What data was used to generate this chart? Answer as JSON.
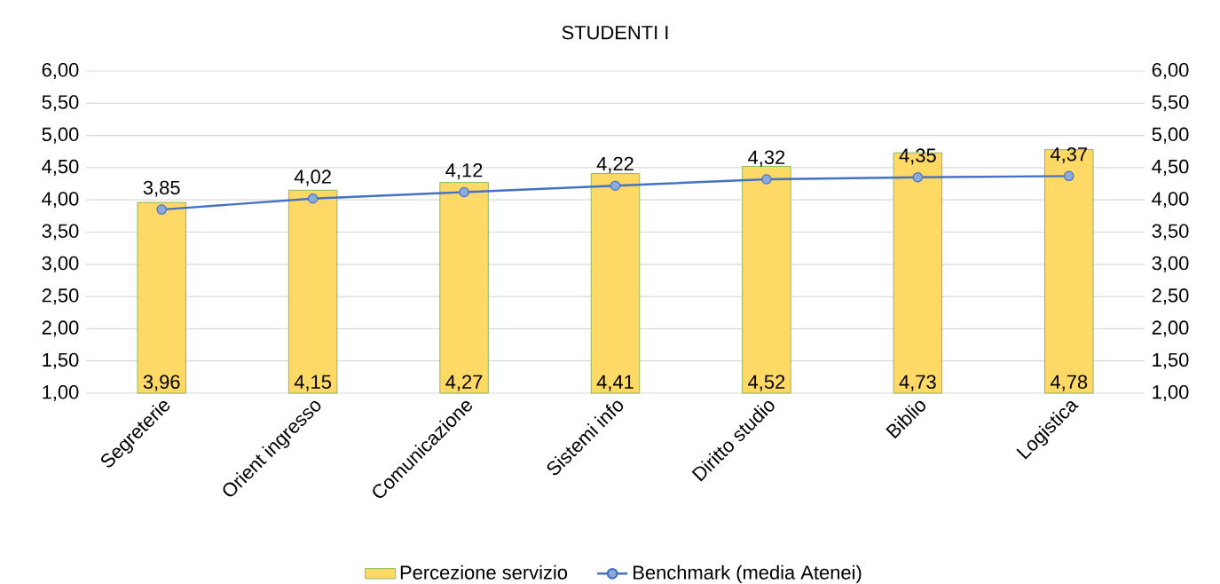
{
  "chart_data": {
    "type": "bar",
    "title": "STUDENTI I",
    "categories": [
      "Segreterie",
      "Orient ingresso",
      "Comunicazione",
      "Sistemi info",
      "Diritto studio",
      "Biblio",
      "Logistica"
    ],
    "series": [
      {
        "name": "Percezione servizio",
        "color": "#ffd966",
        "values": [
          3.96,
          4.15,
          4.27,
          4.41,
          4.52,
          4.73,
          4.78
        ],
        "value_labels": [
          "3,96",
          "4,15",
          "4,27",
          "4,41",
          "4,52",
          "4,73",
          "4,78"
        ]
      },
      {
        "name": "Benchmark (media Atenei)",
        "type": "line",
        "axis": "y2",
        "color": "#4472c4",
        "values": [
          3.85,
          4.02,
          4.12,
          4.22,
          4.32,
          4.35,
          4.37
        ],
        "value_labels": [
          "3,85",
          "4,02",
          "4,12",
          "4,22",
          "4,32",
          "4,35",
          "4,37"
        ]
      }
    ],
    "ylim": [
      1,
      6
    ],
    "yticks": [
      {
        "value": 1,
        "label": "1,00"
      },
      {
        "value": 1.5,
        "label": "1,50"
      },
      {
        "value": 2,
        "label": "2,00"
      },
      {
        "value": 2.5,
        "label": "2,50"
      },
      {
        "value": 3,
        "label": "3,00"
      },
      {
        "value": 3.5,
        "label": "3,50"
      },
      {
        "value": 4,
        "label": "4,00"
      },
      {
        "value": 4.5,
        "label": "4,50"
      },
      {
        "value": 5,
        "label": "5,00"
      },
      {
        "value": 5.5,
        "label": "5,50"
      },
      {
        "value": 6,
        "label": "6,00"
      }
    ],
    "y2lim": [
      1,
      6
    ],
    "y2ticks": [
      {
        "value": 1,
        "label": "1,00"
      },
      {
        "value": 1.5,
        "label": "1,50"
      },
      {
        "value": 2,
        "label": "2,00"
      },
      {
        "value": 2.5,
        "label": "2,50"
      },
      {
        "value": 3,
        "label": "3,00"
      },
      {
        "value": 3.5,
        "label": "3,50"
      },
      {
        "value": 4,
        "label": "4,00"
      },
      {
        "value": 4.5,
        "label": "4,50"
      },
      {
        "value": 5,
        "label": "5,00"
      },
      {
        "value": 5.5,
        "label": "5,50"
      },
      {
        "value": 6,
        "label": "6,00"
      }
    ],
    "grid": "y",
    "legend": "bottom",
    "marker": "circle",
    "line_style": "solid"
  }
}
